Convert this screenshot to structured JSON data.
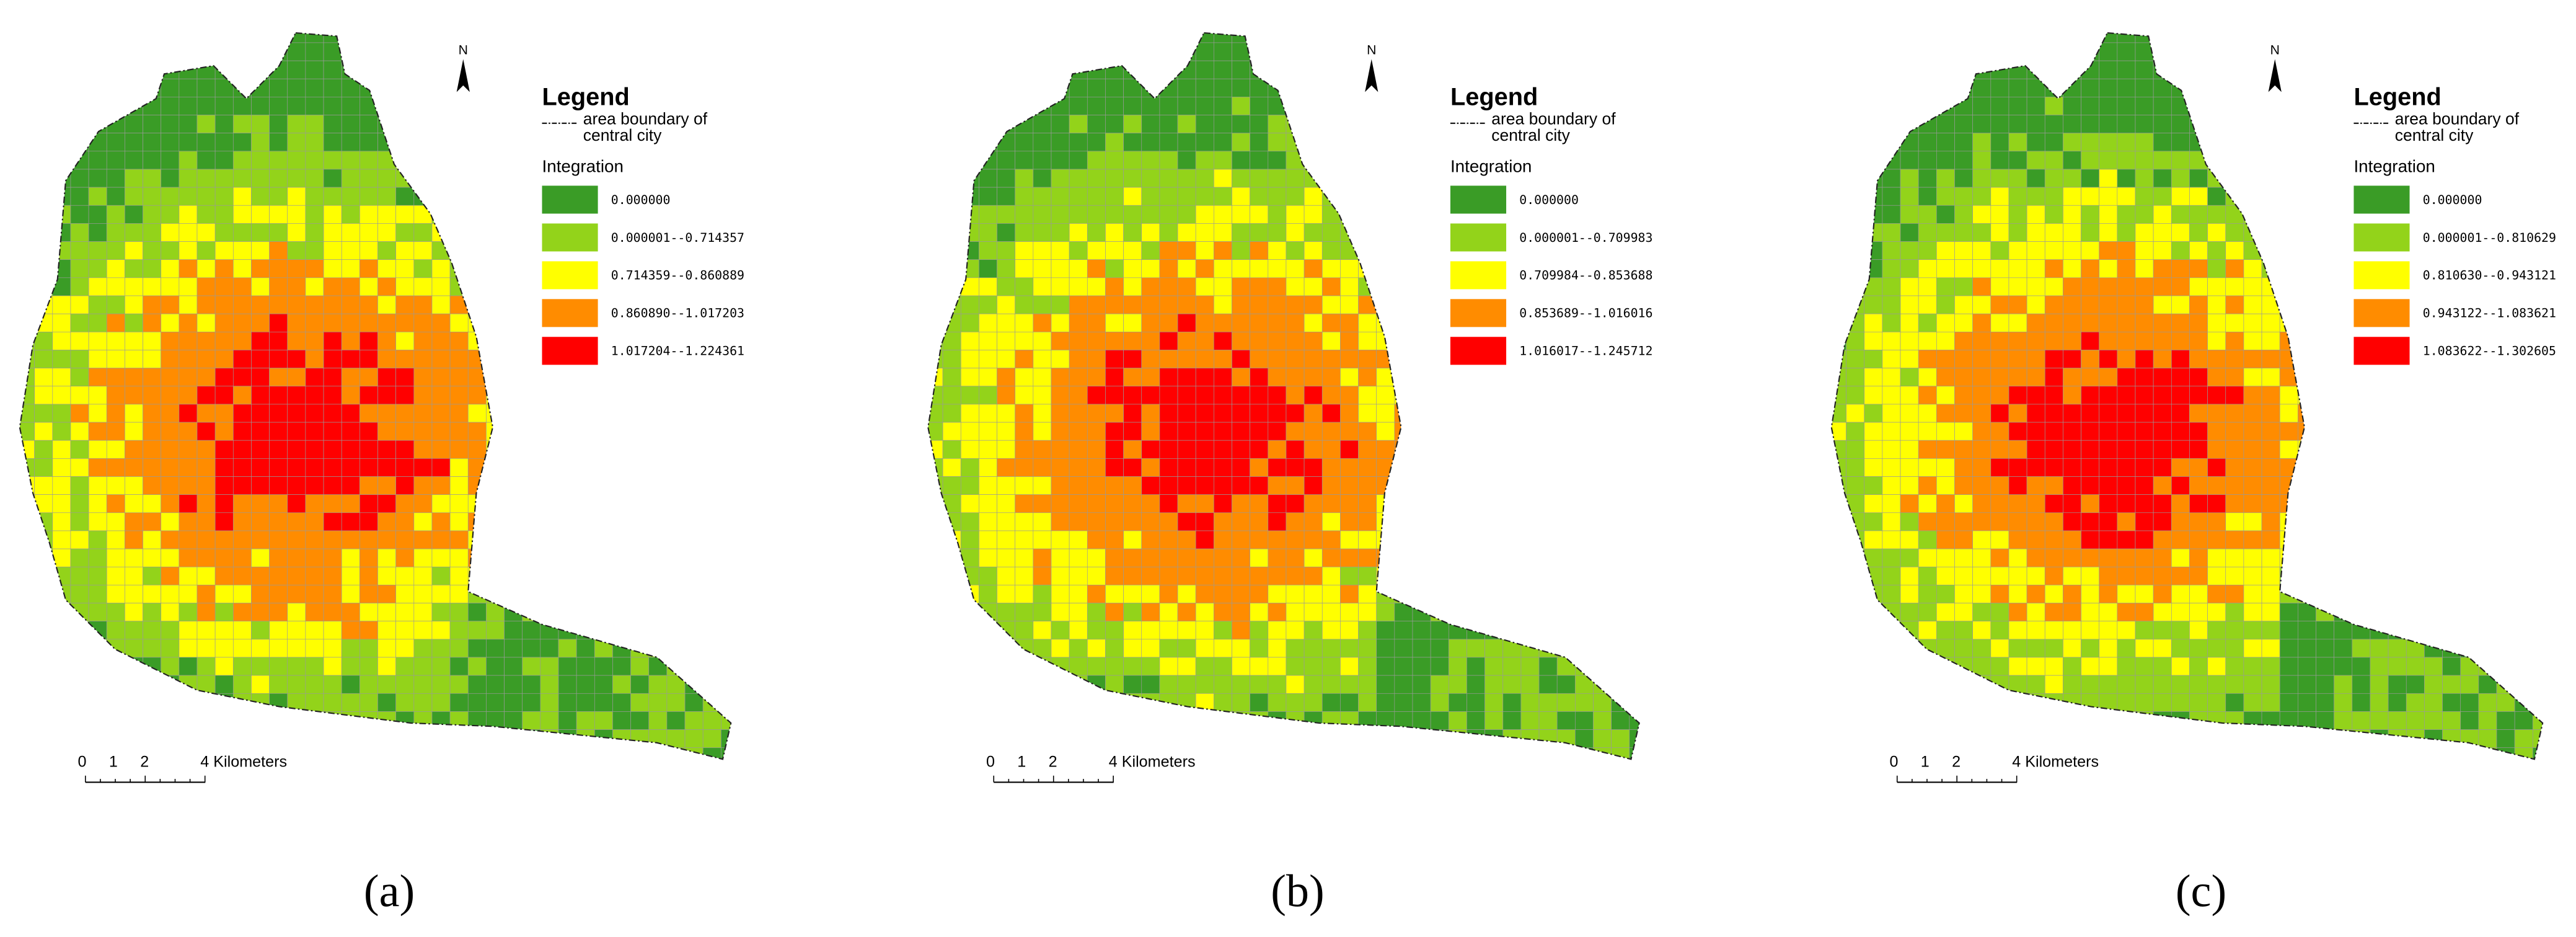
{
  "panels": [
    {
      "label": "(a)",
      "north": "N",
      "legend": {
        "title": "Legend",
        "boundary": [
          "area boundary of",
          "central city"
        ],
        "field": "Integration",
        "classes": [
          {
            "label": "0.000000",
            "color": "#3a9c26"
          },
          {
            "label": "0.000001--0.714357",
            "color": "#93d31a"
          },
          {
            "label": "0.714359--0.860889",
            "color": "#ffff00"
          },
          {
            "label": "0.860890--1.017203",
            "color": "#ff8c00"
          },
          {
            "label": "1.017204--1.224361",
            "color": "#ff0000"
          }
        ]
      },
      "scale": [
        "0",
        "1",
        "2",
        "4 Kilometers"
      ]
    },
    {
      "label": "(b)",
      "north": "N",
      "legend": {
        "title": "Legend",
        "boundary": [
          "area boundary of",
          "central city"
        ],
        "field": "Integration",
        "classes": [
          {
            "label": "0.000000",
            "color": "#3a9c26"
          },
          {
            "label": "0.000001--0.709983",
            "color": "#93d31a"
          },
          {
            "label": "0.709984--0.853688",
            "color": "#ffff00"
          },
          {
            "label": "0.853689--1.016016",
            "color": "#ff8c00"
          },
          {
            "label": "1.016017--1.245712",
            "color": "#ff0000"
          }
        ]
      },
      "scale": [
        "0",
        "1",
        "2",
        "4 Kilometers"
      ]
    },
    {
      "label": "(c)",
      "north": "N",
      "legend": {
        "title": "Legend",
        "boundary": [
          "area boundary of",
          "central city"
        ],
        "field": "Integration",
        "classes": [
          {
            "label": "0.000000",
            "color": "#3a9c26"
          },
          {
            "label": "0.000001--0.810629",
            "color": "#93d31a"
          },
          {
            "label": "0.810630--0.943121",
            "color": "#ffff00"
          },
          {
            "label": "0.943122--1.083621",
            "color": "#ff8c00"
          },
          {
            "label": "1.083622--1.302605",
            "color": "#ff0000"
          }
        ]
      },
      "scale": [
        "0",
        "1",
        "2",
        "4 Kilometers"
      ]
    }
  ]
}
